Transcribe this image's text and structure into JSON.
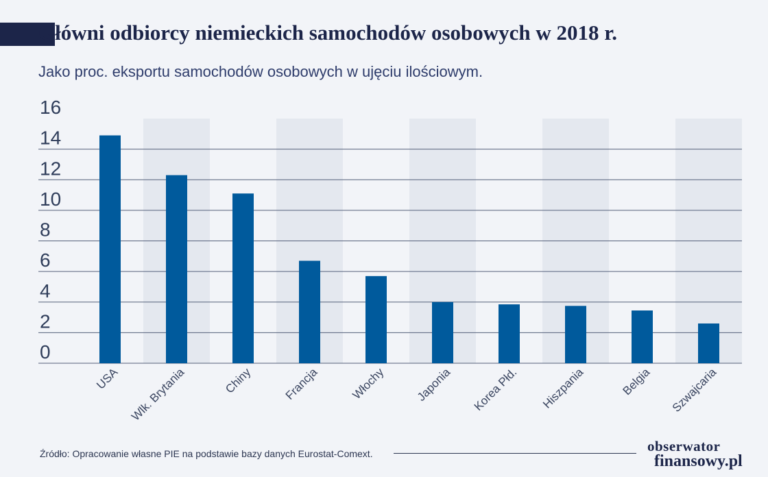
{
  "header": {
    "title": "Główni odbiorcy niemieckich samochodów osobowych w 2018 r.",
    "subtitle": "Jako proc. eksportu samochodów osobowych w ujęciu ilościowym."
  },
  "chart_data": {
    "type": "bar",
    "categories": [
      "USA",
      "Wlk. Brytania",
      "Chiny",
      "Francja",
      "Włochy",
      "Japonia",
      "Korea Płd.",
      "Hiszpania",
      "Belgia",
      "Szwajcaria"
    ],
    "values": [
      14.9,
      12.3,
      11.1,
      6.7,
      5.7,
      4.0,
      3.85,
      3.75,
      3.45,
      2.6
    ],
    "title": "Główni odbiorcy niemieckich samochodów osobowych w 2018 r.",
    "subtitle": "Jako proc. eksportu samochodów osobowych w ujęciu ilościowym.",
    "xlabel": "",
    "ylabel": "",
    "ylim": [
      0,
      16
    ],
    "yticks": [
      0,
      2,
      4,
      6,
      8,
      10,
      12,
      14,
      16
    ],
    "grid": "horizontal",
    "legend": "none",
    "colors": {
      "bar": "#005a9c",
      "band": "#e4e8ef",
      "grid": "#55607a",
      "background": "#f2f4f8"
    }
  },
  "footer": {
    "source": "Źródło: Opracowanie własne PIE na podstawie bazy danych Eurostat-Comext.",
    "logo_line1": "obserwator",
    "logo_line2": "finansowy.pl"
  }
}
